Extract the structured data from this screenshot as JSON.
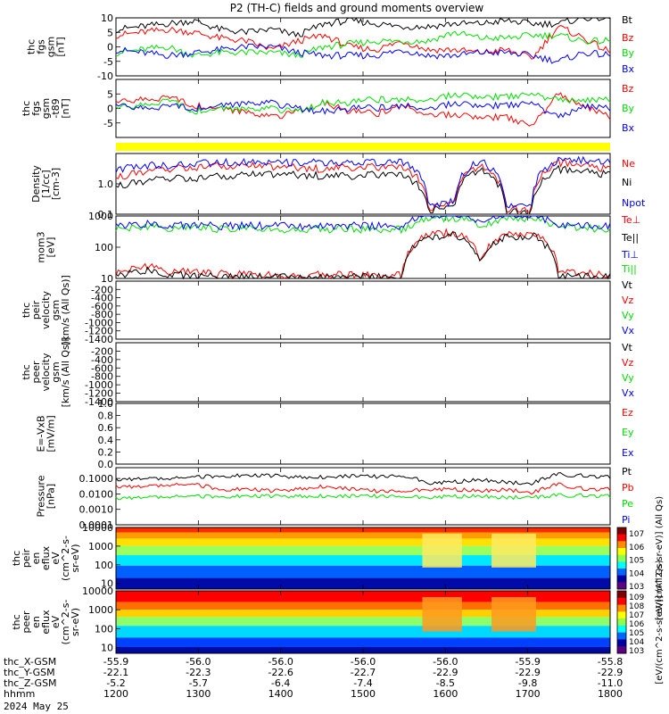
{
  "title": "P2 (TH-C) fields and ground moments overview",
  "date_label": "2024 May 25",
  "colors": {
    "black": "#000000",
    "red": "#ff0000",
    "green": "#00e000",
    "blue": "#0000ff",
    "yellow": "#ffff00"
  },
  "ephemeris": {
    "rows": [
      {
        "label": "thc_X-GSM",
        "values": [
          "-55.9",
          "-56.0",
          "-56.0",
          "-56.0",
          "-56.0",
          "-55.9",
          "-55.8"
        ]
      },
      {
        "label": "thc_Y-GSM",
        "values": [
          "-22.1",
          "-22.3",
          "-22.6",
          "-22.7",
          "-22.9",
          "-22.9",
          "-22.9"
        ]
      },
      {
        "label": "thc_Z-GSM",
        "values": [
          "-5.2",
          "-5.7",
          "-6.4",
          "-7.4",
          "-8.5",
          "-9.8",
          "-11.0"
        ]
      },
      {
        "label": "hhmm",
        "values": [
          "1200",
          "1300",
          "1400",
          "1500",
          "1600",
          "1700",
          "1800"
        ]
      }
    ]
  },
  "chart_data": [
    {
      "type": "line",
      "ylabel": [
        "thc",
        "fgs",
        "gsm",
        "[nT]"
      ],
      "ylim": [
        -10,
        10
      ],
      "yticks": [
        "10",
        "5",
        "0",
        "-5",
        "-10"
      ],
      "legend": [
        "Bt",
        "Bz",
        "By",
        "Bx"
      ],
      "series": [
        {
          "name": "Bt",
          "color": "#000000",
          "values": [
            6,
            7,
            8,
            9,
            6,
            5,
            6,
            4,
            8,
            9,
            8,
            7,
            7,
            8,
            8,
            9,
            8,
            8,
            10,
            10
          ]
        },
        {
          "name": "Bz",
          "color": "#ff0000",
          "values": [
            4,
            5,
            6,
            5,
            3,
            2,
            -1,
            2,
            4,
            0,
            -1,
            2,
            -1,
            -1,
            -2,
            -1,
            -4,
            7,
            3,
            -2
          ]
        },
        {
          "name": "By",
          "color": "#00e000",
          "values": [
            -2,
            -1,
            0,
            -3,
            -2,
            -2,
            -2,
            -3,
            0,
            1,
            2,
            2,
            2,
            5,
            3,
            3,
            4,
            4,
            2,
            2
          ]
        },
        {
          "name": "Bx",
          "color": "#0000ff",
          "values": [
            -1,
            -2,
            -3,
            -2,
            -1,
            0,
            0,
            -2,
            -3,
            -3,
            -3,
            -1,
            -3,
            -3,
            -2,
            -2,
            -3,
            -5,
            -2,
            -3
          ]
        }
      ]
    },
    {
      "type": "line",
      "ylabel": [
        "thc",
        "fgs",
        "gsm",
        "-t89",
        "[nT]"
      ],
      "ylim": [
        -10,
        10
      ],
      "yticks": [
        "5",
        "0",
        "-5"
      ],
      "legend": [
        "Bz",
        "By",
        "Bx"
      ],
      "series": [
        {
          "name": "Bz",
          "color": "#ff0000",
          "values": [
            2,
            3,
            4,
            1,
            0,
            -1,
            -3,
            -1,
            2,
            -1,
            -2,
            1,
            -2,
            -2,
            -3,
            -3,
            -6,
            5,
            1,
            -3
          ]
        },
        {
          "name": "By",
          "color": "#00e000",
          "values": [
            0,
            1,
            3,
            -1,
            0,
            0,
            0,
            -1,
            2,
            2,
            3,
            3,
            3,
            5,
            4,
            4,
            5,
            3,
            3,
            3
          ]
        },
        {
          "name": "Bx",
          "color": "#0000ff",
          "values": [
            1,
            0,
            1,
            0,
            1,
            2,
            2,
            0,
            -1,
            0,
            0,
            1,
            0,
            2,
            1,
            1,
            2,
            -3,
            1,
            0
          ]
        }
      ]
    },
    {
      "type": "line",
      "ylabel": [
        "Density",
        "[1/cc]",
        "[cm-3]"
      ],
      "log": true,
      "ylim": [
        0.1,
        10
      ],
      "yticks": [
        "1.0",
        "0.1"
      ],
      "legend": [
        "Ne",
        "Ni",
        "Npot"
      ],
      "series": [
        {
          "name": "Ne",
          "color": "#ff0000",
          "values": [
            1.5,
            2.5,
            3,
            3.5,
            4,
            4,
            3.5,
            3.5,
            3,
            3.5,
            3.5,
            3.5,
            0.15,
            0.2,
            4,
            0.15,
            0.15,
            5,
            4,
            3
          ]
        },
        {
          "name": "Ni",
          "color": "#000000",
          "values": [
            0.8,
            1.2,
            1.5,
            1.5,
            1.8,
            2,
            2,
            2,
            1.8,
            1.8,
            2,
            2,
            0.13,
            0.15,
            3,
            0.12,
            0.12,
            3,
            2.5,
            2
          ]
        },
        {
          "name": "Npot",
          "color": "#0000ff",
          "values": [
            3,
            4,
            4,
            4.5,
            5,
            5,
            5,
            5,
            5,
            5,
            5,
            5,
            0.2,
            0.25,
            5.5,
            0.2,
            0.2,
            6,
            6,
            5
          ]
        }
      ]
    },
    {
      "type": "line",
      "ylabel": [
        "mom3",
        "[eV]"
      ],
      "log": true,
      "ylim": [
        10,
        1000
      ],
      "yticks": [
        "1000",
        "100",
        "10"
      ],
      "legend": [
        "Te⊥",
        "Te||",
        "Ti⊥",
        "Ti||"
      ],
      "series": [
        {
          "name": "Te⊥",
          "color": "#ff0000",
          "values": [
            15,
            25,
            18,
            15,
            14,
            13,
            13,
            13,
            13,
            13,
            13,
            13,
            250,
            300,
            40,
            250,
            280,
            15,
            14,
            14
          ]
        },
        {
          "name": "Te||",
          "color": "#000000",
          "values": [
            12,
            18,
            14,
            12,
            11,
            11,
            11,
            11,
            11,
            11,
            11,
            11,
            200,
            250,
            30,
            200,
            230,
            12,
            12,
            12
          ]
        },
        {
          "name": "Ti⊥",
          "color": "#00e000",
          "values": [
            400,
            450,
            420,
            400,
            380,
            380,
            380,
            380,
            380,
            380,
            380,
            380,
            800,
            900,
            500,
            800,
            850,
            400,
            400,
            400
          ]
        },
        {
          "name": "Ti||",
          "color": "#0000ff",
          "values": [
            500,
            550,
            520,
            500,
            480,
            480,
            480,
            480,
            480,
            480,
            480,
            480,
            1000,
            1200,
            600,
            1100,
            1100,
            500,
            500,
            500
          ]
        }
      ]
    },
    {
      "type": "line",
      "ylabel": [
        "thc",
        "peir",
        "velocity",
        "gsm",
        "[km/s (All Qs)]"
      ],
      "ylim": [
        -1400,
        0
      ],
      "yticks": [
        "-200",
        "-400",
        "-600",
        "-800",
        "-1000",
        "-1200",
        "-1400"
      ],
      "legend": [
        "Vt",
        "Vz",
        "Vy",
        "Vx"
      ],
      "series": []
    },
    {
      "type": "line",
      "ylabel": [
        "thc",
        "peer",
        "velocity",
        "gsm",
        "[km/s (All Qs)]"
      ],
      "ylim": [
        -1400,
        0
      ],
      "yticks": [
        "-200",
        "-400",
        "-600",
        "-800",
        "-1000",
        "-1200",
        "-1400"
      ],
      "legend": [
        "Vt",
        "Vz",
        "Vy",
        "Vx"
      ],
      "series": []
    },
    {
      "type": "line",
      "ylabel": [
        "E=-VxB",
        "[mV/m]"
      ],
      "ylim": [
        0,
        1
      ],
      "yticks": [
        "1.0",
        "0.8",
        "0.6",
        "0.4",
        "0.2",
        "0.0"
      ],
      "legend": [
        "Ez",
        "Ey",
        "Ex"
      ],
      "series": []
    },
    {
      "type": "line",
      "ylabel": [
        "Pressure",
        "[nPa]"
      ],
      "log": true,
      "ylim": [
        0.0001,
        0.5
      ],
      "yticks": [
        "0.1000",
        "0.0100",
        "0.0010",
        "0.0001"
      ],
      "legend": [
        "Pt",
        "Pb",
        "Pe",
        "Pi"
      ],
      "series": [
        {
          "name": "Pt",
          "color": "#000000",
          "values": [
            0.08,
            0.1,
            0.09,
            0.12,
            0.15,
            0.15,
            0.15,
            0.12,
            0.12,
            0.14,
            0.13,
            0.15,
            0.05,
            0.06,
            0.08,
            0.06,
            0.04,
            0.18,
            0.15,
            0.12
          ]
        },
        {
          "name": "Pb",
          "color": "#ff0000",
          "values": [
            0.03,
            0.03,
            0.035,
            0.04,
            0.02,
            0.02,
            0.015,
            0.02,
            0.03,
            0.02,
            0.015,
            0.015,
            0.02,
            0.02,
            0.015,
            0.02,
            0.01,
            0.04,
            0.02,
            0.02
          ]
        },
        {
          "name": "Pe",
          "color": "#00e000",
          "values": [
            0.005,
            0.006,
            0.006,
            0.007,
            0.007,
            0.007,
            0.007,
            0.007,
            0.007,
            0.007,
            0.007,
            0.007,
            0.006,
            0.007,
            0.007,
            0.006,
            0.006,
            0.008,
            0.008,
            0.007
          ]
        }
      ]
    },
    {
      "type": "heatmap",
      "ylabel": [
        "thc",
        "peir",
        "en",
        "eflux",
        "eV",
        "(cm^2-s-",
        "sr-eV)"
      ],
      "log": true,
      "ylim": [
        5,
        10000
      ],
      "yticks": [
        "10000",
        "1000",
        "100",
        "10"
      ],
      "colorbar_label": "[eV/(cm^2-s-sr-eV)] (All Qs)",
      "colorbar_ticks": [
        "10^7",
        "10^6",
        "10^5",
        "10^4",
        "10^3"
      ]
    },
    {
      "type": "heatmap",
      "ylabel": [
        "thc",
        "peer",
        "en",
        "eflux",
        "eV",
        "(cm^2-s-",
        "sr-eV)"
      ],
      "log": true,
      "ylim": [
        5,
        10000
      ],
      "yticks": [
        "10000",
        "1000",
        "100",
        "10"
      ],
      "colorbar_label": "[eV/(cm^2-s-sr-eV)] (All Qs)",
      "colorbar_ticks": [
        "10^9",
        "10^8",
        "10^7",
        "10^6",
        "10^5",
        "10^4",
        "10^3"
      ]
    }
  ]
}
